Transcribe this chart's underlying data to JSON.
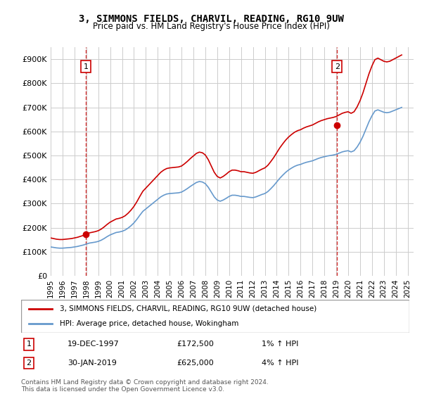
{
  "title": "3, SIMMONS FIELDS, CHARVIL, READING, RG10 9UW",
  "subtitle": "Price paid vs. HM Land Registry's House Price Index (HPI)",
  "ylabel_ticks": [
    "£0",
    "£100K",
    "£200K",
    "£300K",
    "£400K",
    "£500K",
    "£600K",
    "£700K",
    "£800K",
    "£900K"
  ],
  "ytick_values": [
    0,
    100000,
    200000,
    300000,
    400000,
    500000,
    600000,
    700000,
    800000,
    900000
  ],
  "ylim": [
    0,
    950000
  ],
  "xlim_start": 1995.0,
  "xlim_end": 2025.5,
  "sale1": {
    "date_num": 1997.97,
    "price": 172500,
    "label": "1",
    "vline_x": 1997.97
  },
  "sale2": {
    "date_num": 2019.08,
    "price": 625000,
    "label": "2",
    "vline_x": 2019.08
  },
  "legend_line1": "3, SIMMONS FIELDS, CHARVIL, READING, RG10 9UW (detached house)",
  "legend_line2": "HPI: Average price, detached house, Wokingham",
  "table_rows": [
    {
      "num": "1",
      "date": "19-DEC-1997",
      "price": "£172,500",
      "hpi": "1% ↑ HPI"
    },
    {
      "num": "2",
      "date": "30-JAN-2019",
      "price": "£625,000",
      "hpi": "4% ↑ HPI"
    }
  ],
  "footnote": "Contains HM Land Registry data © Crown copyright and database right 2024.\nThis data is licensed under the Open Government Licence v3.0.",
  "hpi_color": "#6699cc",
  "price_color": "#cc0000",
  "vline_color": "#cc0000",
  "background_color": "#ffffff",
  "grid_color": "#cccccc",
  "hpi_data": {
    "years": [
      1995.0,
      1995.25,
      1995.5,
      1995.75,
      1996.0,
      1996.25,
      1996.5,
      1996.75,
      1997.0,
      1997.25,
      1997.5,
      1997.75,
      1998.0,
      1998.25,
      1998.5,
      1998.75,
      1999.0,
      1999.25,
      1999.5,
      1999.75,
      2000.0,
      2000.25,
      2000.5,
      2000.75,
      2001.0,
      2001.25,
      2001.5,
      2001.75,
      2002.0,
      2002.25,
      2002.5,
      2002.75,
      2003.0,
      2003.25,
      2003.5,
      2003.75,
      2004.0,
      2004.25,
      2004.5,
      2004.75,
      2005.0,
      2005.25,
      2005.5,
      2005.75,
      2006.0,
      2006.25,
      2006.5,
      2006.75,
      2007.0,
      2007.25,
      2007.5,
      2007.75,
      2008.0,
      2008.25,
      2008.5,
      2008.75,
      2009.0,
      2009.25,
      2009.5,
      2009.75,
      2010.0,
      2010.25,
      2010.5,
      2010.75,
      2011.0,
      2011.25,
      2011.5,
      2011.75,
      2012.0,
      2012.25,
      2012.5,
      2012.75,
      2013.0,
      2013.25,
      2013.5,
      2013.75,
      2014.0,
      2014.25,
      2014.5,
      2014.75,
      2015.0,
      2015.25,
      2015.5,
      2015.75,
      2016.0,
      2016.25,
      2016.5,
      2016.75,
      2017.0,
      2017.25,
      2017.5,
      2017.75,
      2018.0,
      2018.25,
      2018.5,
      2018.75,
      2019.0,
      2019.25,
      2019.5,
      2019.75,
      2020.0,
      2020.25,
      2020.5,
      2020.75,
      2021.0,
      2021.25,
      2021.5,
      2021.75,
      2022.0,
      2022.25,
      2022.5,
      2022.75,
      2023.0,
      2023.25,
      2023.5,
      2023.75,
      2024.0,
      2024.25,
      2024.5
    ],
    "values": [
      120000,
      118000,
      116000,
      115000,
      115000,
      116000,
      117000,
      118000,
      120000,
      122000,
      125000,
      128000,
      132000,
      136000,
      138000,
      140000,
      143000,
      148000,
      155000,
      163000,
      170000,
      175000,
      180000,
      182000,
      185000,
      190000,
      198000,
      208000,
      220000,
      235000,
      252000,
      268000,
      278000,
      288000,
      298000,
      308000,
      318000,
      328000,
      335000,
      340000,
      342000,
      343000,
      344000,
      345000,
      348000,
      355000,
      363000,
      372000,
      380000,
      388000,
      392000,
      390000,
      383000,
      368000,
      348000,
      328000,
      315000,
      310000,
      315000,
      322000,
      330000,
      335000,
      335000,
      333000,
      330000,
      330000,
      328000,
      326000,
      325000,
      328000,
      333000,
      338000,
      342000,
      350000,
      362000,
      375000,
      390000,
      405000,
      418000,
      430000,
      440000,
      448000,
      455000,
      460000,
      463000,
      468000,
      472000,
      475000,
      478000,
      483000,
      488000,
      492000,
      495000,
      498000,
      500000,
      502000,
      505000,
      510000,
      515000,
      518000,
      520000,
      515000,
      520000,
      535000,
      555000,
      580000,
      610000,
      640000,
      665000,
      685000,
      690000,
      685000,
      680000,
      678000,
      680000,
      685000,
      690000,
      695000,
      700000
    ]
  }
}
